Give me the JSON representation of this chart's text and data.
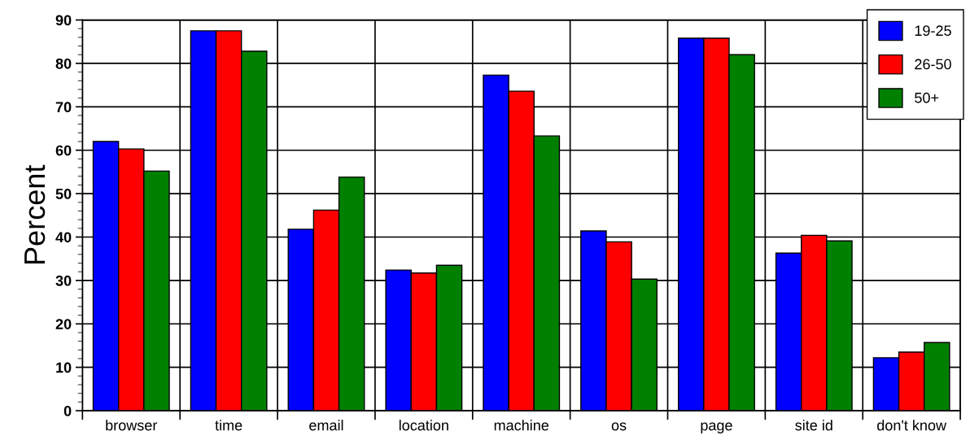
{
  "chart_data": {
    "type": "bar",
    "ylabel": "Percent",
    "categories": [
      "browser",
      "time",
      "email",
      "location",
      "machine",
      "os",
      "page",
      "site id",
      "don't know"
    ],
    "series": [
      {
        "name": "19-25",
        "color": "#0000ff",
        "values": [
          62.0,
          87.5,
          41.8,
          32.4,
          77.3,
          41.4,
          85.8,
          36.3,
          12.2
        ]
      },
      {
        "name": "26-50",
        "color": "#ff0000",
        "values": [
          60.3,
          87.5,
          46.2,
          31.7,
          73.6,
          38.9,
          85.8,
          40.4,
          13.5
        ]
      },
      {
        "name": "50+",
        "color": "#008000",
        "values": [
          55.2,
          82.8,
          53.8,
          33.5,
          63.3,
          30.3,
          82.0,
          39.1,
          15.7
        ]
      }
    ],
    "ylim": [
      0,
      90
    ],
    "yticks": [
      0,
      10,
      20,
      30,
      40,
      50,
      60,
      70,
      80,
      90
    ],
    "grid": true,
    "legend": "top right"
  }
}
